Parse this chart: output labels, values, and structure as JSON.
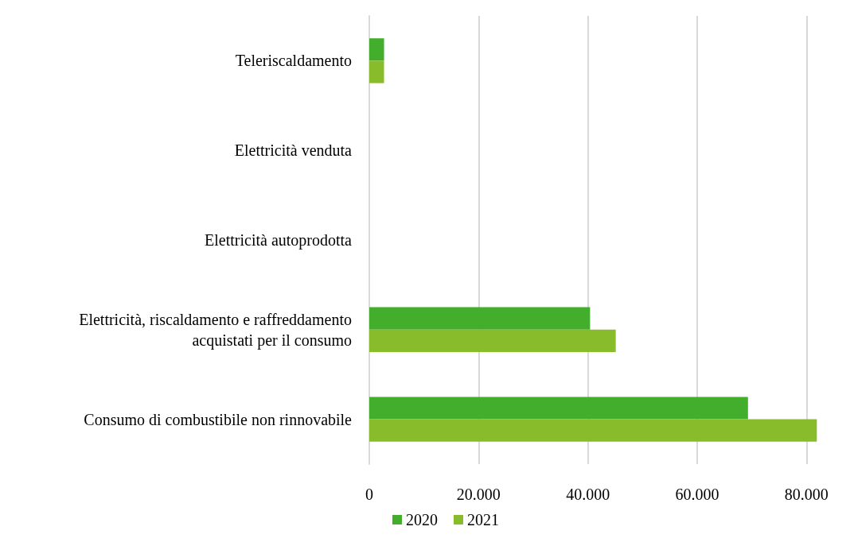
{
  "chart_data": {
    "type": "bar",
    "orientation": "horizontal",
    "categories": [
      "Teleriscaldamento",
      "Elettricità venduta",
      "Elettricità autoprodotta",
      "Elettricità, riscaldamento e raffreddamento\nacquistati per il consumo",
      "Consumo di combustibile non rinnovabile"
    ],
    "series": [
      {
        "name": "2020",
        "color": "#43ae2c",
        "values": [
          2700,
          0,
          0,
          40400,
          69300
        ]
      },
      {
        "name": "2021",
        "color": "#88bc2a",
        "values": [
          2700,
          0,
          0,
          45100,
          81900
        ]
      }
    ],
    "xlim": [
      0,
      82000
    ],
    "xticks": [
      {
        "value": 0,
        "label": "0"
      },
      {
        "value": 20000,
        "label": "20.000"
      },
      {
        "value": 40000,
        "label": "40.000"
      },
      {
        "value": 60000,
        "label": "60.000"
      },
      {
        "value": 80000,
        "label": "80.000"
      }
    ],
    "grid": "x",
    "legend": "bottom"
  }
}
